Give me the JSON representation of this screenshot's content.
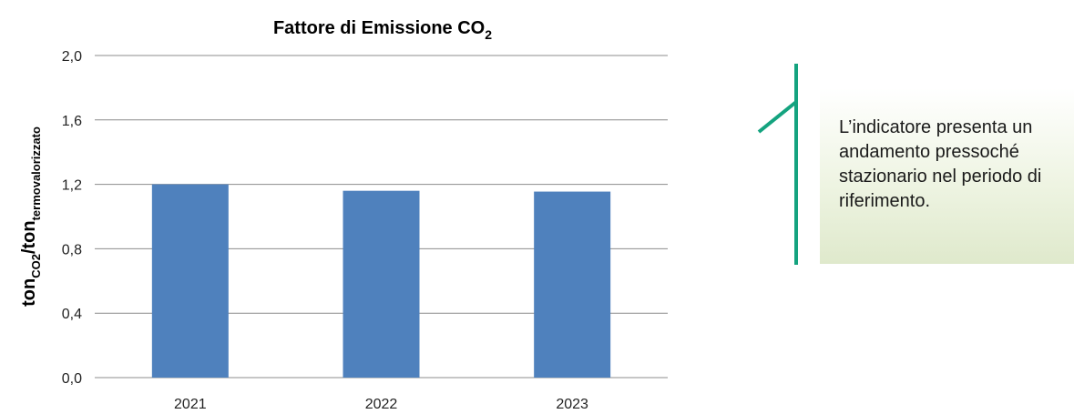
{
  "chart_data": {
    "type": "bar",
    "title": "Fattore di Emissione CO",
    "title_sub": "2",
    "ylabel_parts": [
      "ton",
      "CO2",
      "/ton",
      "termovalorizzato"
    ],
    "categories": [
      "2021",
      "2022",
      "2023"
    ],
    "values": [
      1.2,
      1.16,
      1.155
    ],
    "ylim": [
      0,
      2.0
    ],
    "yticks": [
      "0,0",
      "0,4",
      "0,8",
      "1,2",
      "1,6",
      "2,0"
    ],
    "ytick_values": [
      0,
      0.4,
      0.8,
      1.2,
      1.6,
      2.0
    ],
    "grid": true,
    "bar_color": "#4f81bd",
    "grid_color": "#8c8c8c"
  },
  "callout": {
    "text": "L’indicatore presenta un andamento pressoché stazionario nel periodo di riferimento.",
    "accent_color": "#14a37f"
  }
}
